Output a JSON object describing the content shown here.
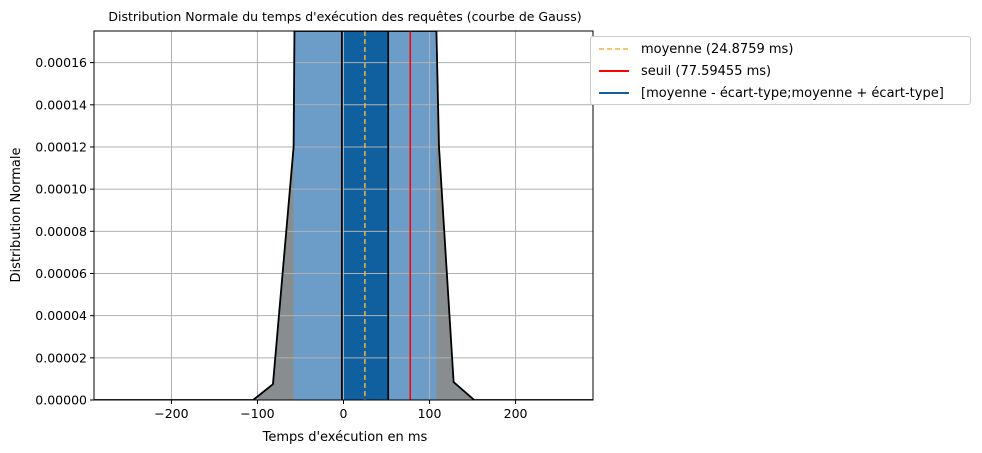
{
  "chart_data": {
    "type": "area",
    "title": "Distribution Normale du temps d'exécution des requêtes (courbe de Gauss)",
    "xlabel": "Temps d'exécution en ms",
    "ylabel": "Distribution Normale",
    "xlim": [
      -290,
      290
    ],
    "ylim": [
      0,
      0.000175
    ],
    "grid": true,
    "legend_position": "outside-top-right",
    "x_ticks": [
      -200,
      -100,
      0,
      100,
      200
    ],
    "x_tick_labels": [
      "−200",
      "−100",
      "0",
      "100",
      "200"
    ],
    "y_ticks": [
      0,
      2e-05,
      4e-05,
      6e-05,
      8e-05,
      0.0001,
      0.00012,
      0.00014,
      0.00016
    ],
    "y_tick_labels": [
      "0.00000",
      "0.00002",
      "0.00004",
      "0.00006",
      "0.00008",
      "0.00010",
      "0.00012",
      "0.00014",
      "0.00016"
    ],
    "curve": {
      "x": [
        -290,
        -105,
        -82,
        -58,
        -57,
        108,
        111,
        128,
        152,
        290
      ],
      "y": [
        0,
        0,
        7.5e-06,
        0.00012,
        0.000175,
        0.000175,
        0.00012,
        8.5e-06,
        0,
        0
      ]
    },
    "mean": 24.8759,
    "threshold": 77.59455,
    "std_interval": [
      -2,
      52
    ],
    "light_band": [
      -58,
      108
    ],
    "legend": [
      {
        "label": "moyenne (24.8759 ms)",
        "style": "dashed",
        "color": "#f5b041"
      },
      {
        "label": "seuil (77.59455 ms)",
        "style": "solid",
        "color": "#ff0000"
      },
      {
        "label": "[moyenne - écart-type;moyenne + écart-type]",
        "style": "solid",
        "color": "#1060a0"
      }
    ],
    "colors": {
      "tail_fill": "#888d90",
      "band_fill": "#6b9dc8",
      "core_fill": "#1060a0",
      "curve": "#000000",
      "grid": "#b0b0b0",
      "mean_line": "#f5b041",
      "threshold_line": "#ff0000"
    }
  }
}
